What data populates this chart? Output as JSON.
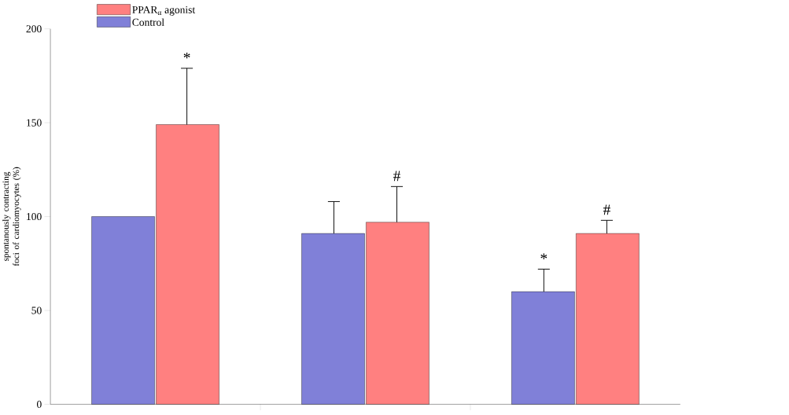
{
  "chart_data": {
    "type": "bar",
    "ylabel": "spontanously contracting foci of cardiomyocytes (%)",
    "categories": [
      null,
      null,
      null
    ],
    "series": [
      {
        "name": "Control",
        "color": "#8080d8",
        "values": [
          100,
          91,
          60
        ],
        "errors": [
          null,
          17,
          12
        ]
      },
      {
        "name": "PPAR$_{α}$ agonist",
        "color": "#ff8080",
        "values": [
          149,
          97,
          91
        ],
        "errors": [
          30,
          19,
          7
        ]
      }
    ],
    "annotations": [
      "*",
      "#",
      "*",
      "#"
    ],
    "ylim": [
      0,
      200
    ],
    "yticks": [
      0,
      50,
      100,
      150,
      200
    ],
    "grid": false,
    "legend": "top left"
  }
}
